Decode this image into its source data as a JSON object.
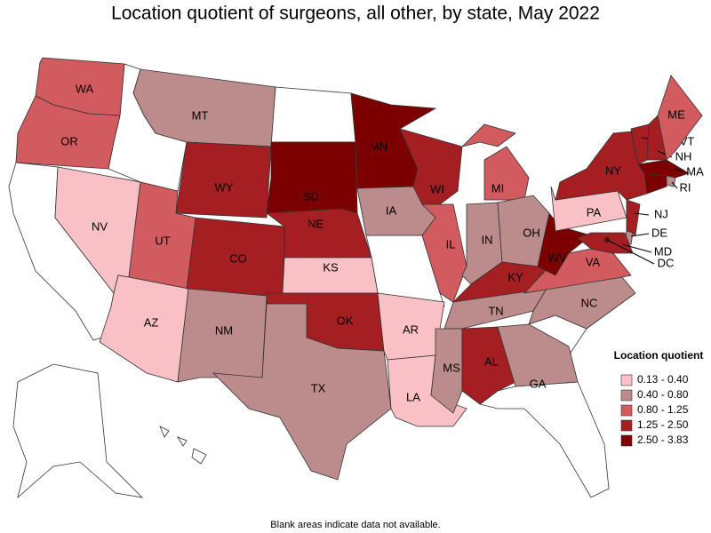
{
  "title": "Location quotient of surgeons, all other, by state, May 2022",
  "legend": {
    "title": "Location quotient",
    "items": [
      {
        "label": "0.13 - 0.40",
        "color": "#f9c0c6"
      },
      {
        "label": "0.40 - 0.80",
        "color": "#bc8b8b"
      },
      {
        "label": "0.80 - 1.25",
        "color": "#d15b5e"
      },
      {
        "label": "1.25 - 2.50",
        "color": "#a51f22"
      },
      {
        "label": "2.50 - 3.83",
        "color": "#7d0000"
      }
    ]
  },
  "states": [
    {
      "abbr": "WA",
      "color": "#d15b5e"
    },
    {
      "abbr": "OR",
      "color": "#d15b5e"
    },
    {
      "abbr": "NV",
      "color": "#f9c0c6"
    },
    {
      "abbr": "MT",
      "color": "#bc8b8b"
    },
    {
      "abbr": "WY",
      "color": "#a51f22"
    },
    {
      "abbr": "UT",
      "color": "#d15b5e"
    },
    {
      "abbr": "AZ",
      "color": "#f9c0c6"
    },
    {
      "abbr": "CO",
      "color": "#a51f22"
    },
    {
      "abbr": "NM",
      "color": "#bc8b8b"
    },
    {
      "abbr": "SD",
      "color": "#7d0000"
    },
    {
      "abbr": "NE",
      "color": "#a51f22"
    },
    {
      "abbr": "KS",
      "color": "#f9c0c6"
    },
    {
      "abbr": "OK",
      "color": "#a51f22"
    },
    {
      "abbr": "TX",
      "color": "#bc8b8b"
    },
    {
      "abbr": "MN",
      "color": "#7d0000"
    },
    {
      "abbr": "IA",
      "color": "#bc8b8b"
    },
    {
      "abbr": "AR",
      "color": "#f9c0c6"
    },
    {
      "abbr": "LA",
      "color": "#f9c0c6"
    },
    {
      "abbr": "WI",
      "color": "#a51f22"
    },
    {
      "abbr": "IL",
      "color": "#d15b5e"
    },
    {
      "abbr": "MI",
      "color": "#d15b5e"
    },
    {
      "abbr": "IN",
      "color": "#bc8b8b"
    },
    {
      "abbr": "OH",
      "color": "#bc8b8b"
    },
    {
      "abbr": "KY",
      "color": "#a51f22"
    },
    {
      "abbr": "TN",
      "color": "#bc8b8b"
    },
    {
      "abbr": "MS",
      "color": "#bc8b8b"
    },
    {
      "abbr": "AL",
      "color": "#a51f22"
    },
    {
      "abbr": "GA",
      "color": "#bc8b8b"
    },
    {
      "abbr": "NC",
      "color": "#bc8b8b"
    },
    {
      "abbr": "VA",
      "color": "#d15b5e"
    },
    {
      "abbr": "WV",
      "color": "#7d0000"
    },
    {
      "abbr": "PA",
      "color": "#f9c0c6"
    },
    {
      "abbr": "NY",
      "color": "#a51f22"
    },
    {
      "abbr": "VT",
      "color": "#a51f22"
    },
    {
      "abbr": "NH",
      "color": "#a51f22"
    },
    {
      "abbr": "ME",
      "color": "#d15b5e"
    },
    {
      "abbr": "MA",
      "color": "#7d0000"
    },
    {
      "abbr": "RI",
      "color": "#bc8b8b"
    },
    {
      "abbr": "NJ",
      "color": "#a51f22"
    },
    {
      "abbr": "DE",
      "color": "#bc8b8b"
    },
    {
      "abbr": "MD",
      "color": "#a51f22"
    },
    {
      "abbr": "DC",
      "color": "#7d0000"
    }
  ],
  "note": "Blank areas indicate data not available."
}
